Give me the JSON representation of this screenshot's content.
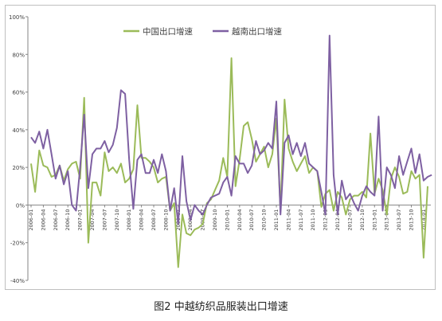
{
  "chart_data": {
    "type": "line",
    "title": "",
    "xlabel": "",
    "ylabel": "",
    "caption": "图2 中越纺织品服装出口增速",
    "ylim": [
      -40,
      100
    ],
    "y_ticks": [
      -40,
      -20,
      0,
      20,
      40,
      60,
      80,
      100
    ],
    "y_tick_labels": [
      "-40%",
      "-20%",
      "0%",
      "20%",
      "40%",
      "60%",
      "80%",
      "100%"
    ],
    "grid": false,
    "legend_position": "top-center",
    "x_tick_labels": [
      "2006-01",
      "2006-04",
      "2006-07",
      "2006-10",
      "2007-01",
      "2007-04",
      "2007-07",
      "2007-10",
      "2008-01",
      "2008-04",
      "2008-07",
      "2008-10",
      "2009-01",
      "2009-04",
      "2009-07",
      "2009-10",
      "2010-01",
      "2010-04",
      "2010-07",
      "2010-10",
      "2011-01",
      "2011-04",
      "2011-07",
      "2011-10",
      "2012-01",
      "2012-04",
      "2012-07",
      "2012-10",
      "2013-01",
      "2013-04",
      "2013-07",
      "2013-10",
      "2014-01"
    ],
    "series": [
      {
        "name": "中国出口增速",
        "color": "#9bbb59",
        "values": [
          22,
          7,
          29,
          21,
          20,
          15,
          16,
          21,
          13,
          19,
          22,
          23,
          14,
          57,
          -20,
          12,
          12,
          5,
          28,
          18,
          20,
          17,
          22,
          12,
          14,
          19,
          53,
          25,
          25,
          23,
          20,
          12,
          14,
          15,
          -3,
          1,
          -33,
          -5,
          -15,
          -16,
          -13,
          -12,
          -10,
          1,
          3,
          8,
          13,
          25,
          15,
          78,
          10,
          24,
          42,
          44,
          35,
          23,
          27,
          31,
          20,
          27,
          46,
          -3,
          56,
          30,
          23,
          18,
          22,
          26,
          17,
          20,
          18,
          -1,
          6,
          8,
          -3,
          7,
          4,
          -5,
          3,
          5,
          5,
          7,
          4,
          38,
          6,
          14,
          8,
          -5,
          14,
          20,
          15,
          6,
          7,
          18,
          14,
          16,
          -28,
          10
        ]
      },
      {
        "name": "越南出口增速",
        "color": "#7e60a2",
        "values": [
          36,
          33,
          39,
          30,
          40,
          27,
          14,
          21,
          11,
          18,
          0,
          -3,
          20,
          48,
          9,
          27,
          30,
          30,
          34,
          28,
          32,
          41,
          61,
          59,
          24,
          -2,
          24,
          27,
          17,
          17,
          24,
          17,
          27,
          18,
          -3,
          9,
          -10,
          26,
          2,
          -8,
          0,
          -3,
          -5,
          0,
          4,
          5,
          6,
          12,
          15,
          5,
          26,
          22,
          22,
          17,
          21,
          34,
          27,
          29,
          33,
          30,
          55,
          -5,
          33,
          37,
          27,
          33,
          26,
          33,
          22,
          20,
          18,
          7,
          -5,
          90,
          16,
          -5,
          13,
          3,
          6,
          1,
          -3,
          5,
          10,
          7,
          5,
          47,
          -3,
          20,
          16,
          9,
          26,
          16,
          23,
          30,
          17,
          27,
          13,
          15,
          16,
          null
        ]
      }
    ]
  }
}
